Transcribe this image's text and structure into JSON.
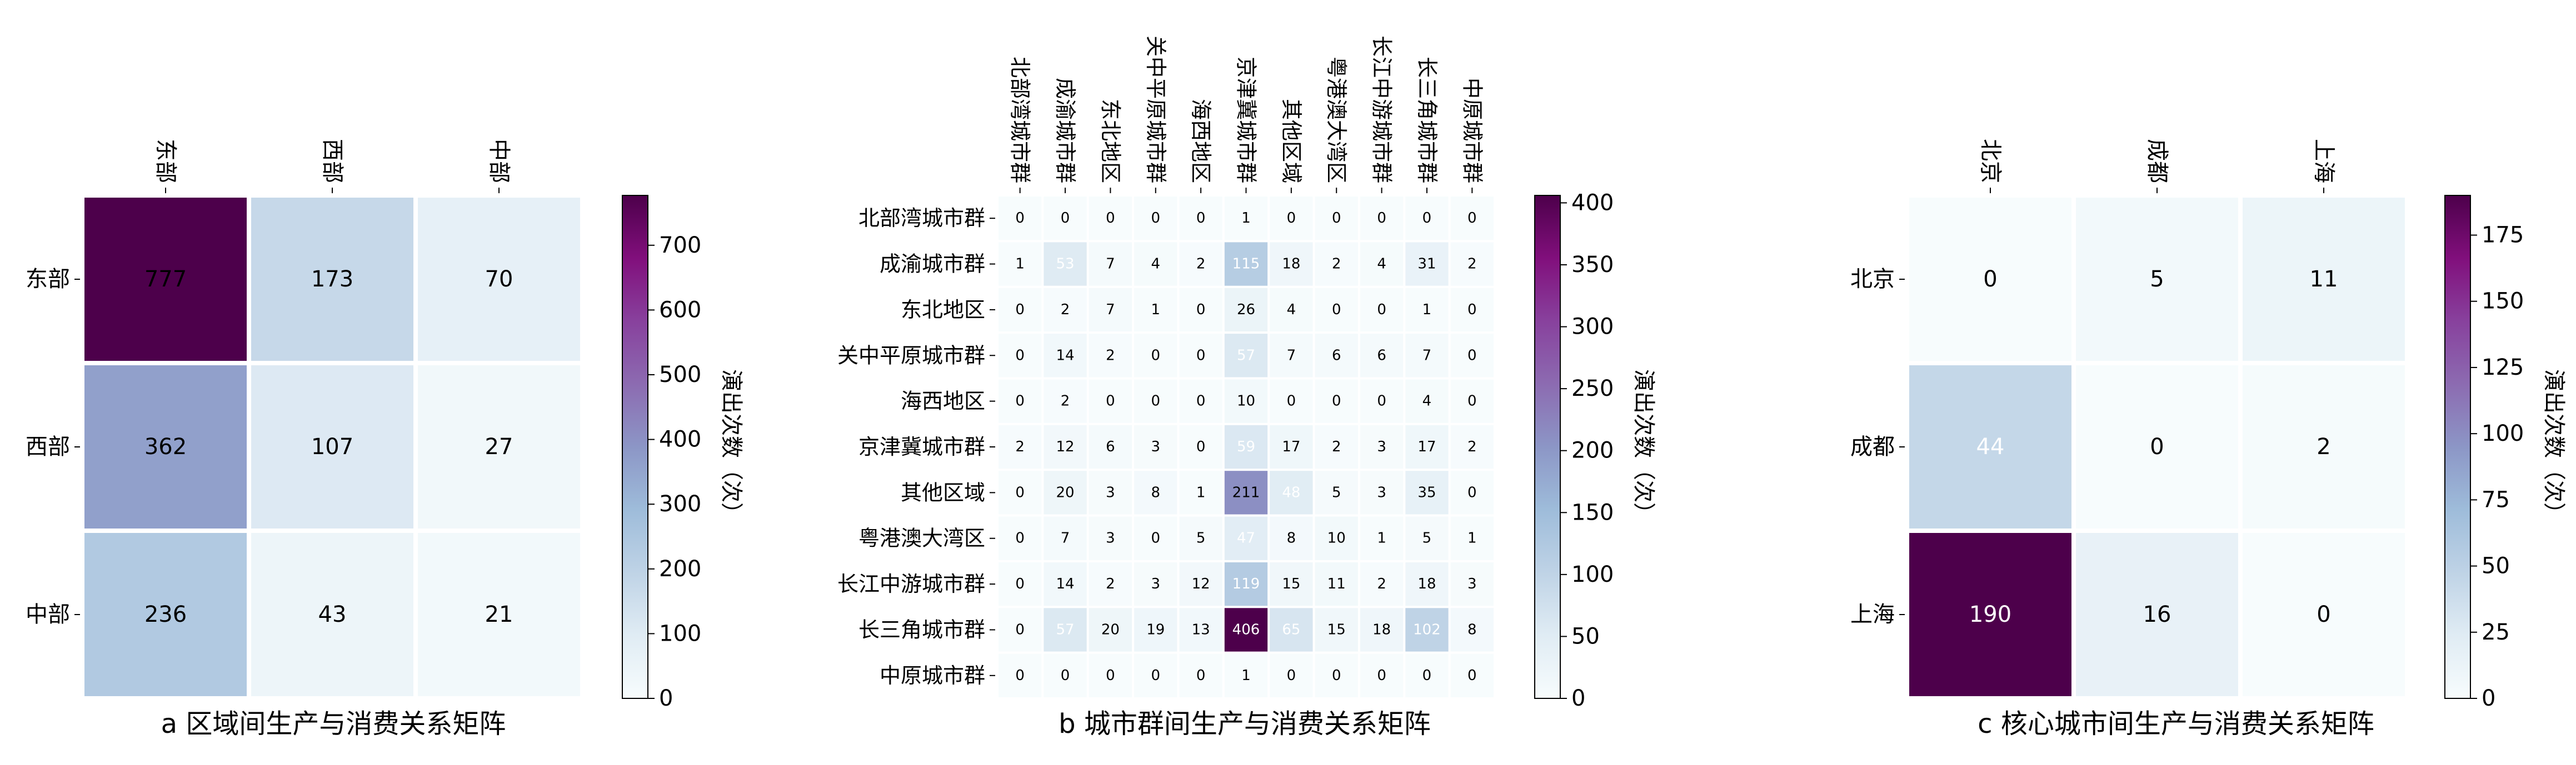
{
  "chart_data": [
    {
      "type": "heatmap",
      "title": "a 区域间生产与消费关系矩阵",
      "x_categories": [
        "东部",
        "西部",
        "中部"
      ],
      "y_categories": [
        "东部",
        "西部",
        "中部"
      ],
      "values": [
        [
          777,
          173,
          70
        ],
        [
          362,
          107,
          27
        ],
        [
          236,
          43,
          21
        ]
      ],
      "colorbar": {
        "label": "演出次数（次）",
        "ticks": [
          0,
          100,
          200,
          300,
          400,
          500,
          600,
          700
        ],
        "range": [
          0,
          777
        ]
      }
    },
    {
      "type": "heatmap",
      "title": "b 城市群间生产与消费关系矩阵",
      "x_categories": [
        "北部湾城市群",
        "成渝城市群",
        "东北地区",
        "关中平原城市群",
        "海西地区",
        "京津冀城市群",
        "其他区域",
        "粤港澳大湾区",
        "长江中游城市群",
        "长三角城市群",
        "中原城市群"
      ],
      "y_categories": [
        "北部湾城市群",
        "成渝城市群",
        "东北地区",
        "关中平原城市群",
        "海西地区",
        "京津冀城市群",
        "其他区域",
        "粤港澳大湾区",
        "长江中游城市群",
        "长三角城市群",
        "中原城市群"
      ],
      "values": [
        [
          0,
          0,
          0,
          0,
          0,
          1,
          0,
          0,
          0,
          0,
          0
        ],
        [
          1,
          53,
          7,
          4,
          2,
          115,
          18,
          2,
          4,
          31,
          2
        ],
        [
          0,
          2,
          7,
          1,
          0,
          26,
          4,
          0,
          0,
          1,
          0
        ],
        [
          0,
          14,
          2,
          0,
          0,
          57,
          7,
          6,
          6,
          7,
          0
        ],
        [
          0,
          2,
          0,
          0,
          0,
          10,
          0,
          0,
          0,
          4,
          0
        ],
        [
          2,
          12,
          6,
          3,
          0,
          59,
          17,
          2,
          3,
          17,
          2
        ],
        [
          0,
          20,
          3,
          8,
          1,
          211,
          48,
          5,
          3,
          35,
          0
        ],
        [
          0,
          7,
          3,
          0,
          5,
          47,
          8,
          10,
          1,
          5,
          1
        ],
        [
          0,
          14,
          2,
          3,
          12,
          119,
          15,
          11,
          2,
          18,
          3
        ],
        [
          0,
          57,
          20,
          19,
          13,
          406,
          65,
          15,
          18,
          102,
          8
        ],
        [
          0,
          0,
          0,
          0,
          0,
          1,
          0,
          0,
          0,
          0,
          0
        ]
      ],
      "colorbar": {
        "label": "演出次数（次）",
        "ticks": [
          0,
          50,
          100,
          150,
          200,
          250,
          300,
          350,
          400
        ],
        "range": [
          0,
          406
        ]
      }
    },
    {
      "type": "heatmap",
      "title": "c 核心城市间生产与消费关系矩阵",
      "x_categories": [
        "北京",
        "成都",
        "上海"
      ],
      "y_categories": [
        "北京",
        "成都",
        "上海"
      ],
      "values": [
        [
          0,
          5,
          11
        ],
        [
          44,
          0,
          2
        ],
        [
          190,
          16,
          0
        ]
      ],
      "colorbar": {
        "label": "演出次数（次）",
        "ticks": [
          0,
          25,
          50,
          75,
          100,
          125,
          150,
          175
        ],
        "range": [
          0,
          190
        ]
      }
    }
  ],
  "colors": {
    "low": "#f7fcfd",
    "high": "#4d004b"
  }
}
